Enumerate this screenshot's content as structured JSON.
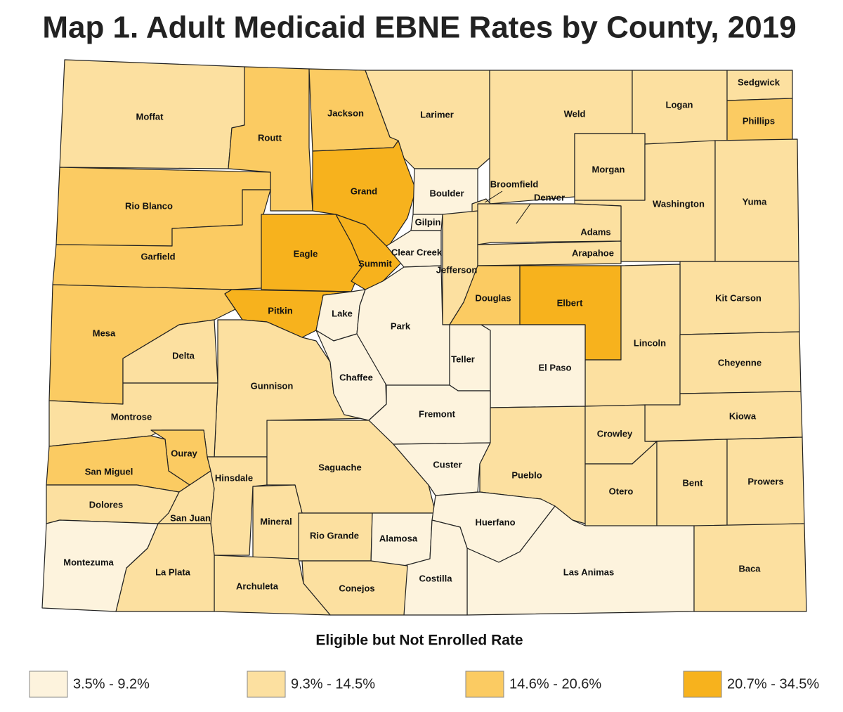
{
  "title": "Map 1. Adult Medicaid EBNE Rates by County, 2019",
  "legend": {
    "title": "Eligible but Not Enrolled Rate",
    "items": [
      {
        "label": "3.5% - 9.2%",
        "color": "#fdf3dd"
      },
      {
        "label": "9.3% - 14.5%",
        "color": "#fce0a0"
      },
      {
        "label": "14.6% - 20.6%",
        "color": "#fbcb62"
      },
      {
        "label": "20.7% - 34.5%",
        "color": "#f7b21d"
      }
    ]
  },
  "counties": [
    {
      "name": "Moffat",
      "class": 1
    },
    {
      "name": "Routt",
      "class": 2
    },
    {
      "name": "Jackson",
      "class": 2
    },
    {
      "name": "Larimer",
      "class": 1
    },
    {
      "name": "Weld",
      "class": 1
    },
    {
      "name": "Logan",
      "class": 1
    },
    {
      "name": "Sedgwick",
      "class": 1
    },
    {
      "name": "Phillips",
      "class": 2
    },
    {
      "name": "Morgan",
      "class": 1
    },
    {
      "name": "Washington",
      "class": 1
    },
    {
      "name": "Yuma",
      "class": 1
    },
    {
      "name": "Rio Blanco",
      "class": 2
    },
    {
      "name": "Garfield",
      "class": 2
    },
    {
      "name": "Grand",
      "class": 3
    },
    {
      "name": "Eagle",
      "class": 3
    },
    {
      "name": "Summit",
      "class": 3
    },
    {
      "name": "Boulder",
      "class": 0
    },
    {
      "name": "Broomfield",
      "class": 1
    },
    {
      "name": "Gilpin",
      "class": 0
    },
    {
      "name": "Clear Creek",
      "class": 0
    },
    {
      "name": "Jefferson",
      "class": 1
    },
    {
      "name": "Denver",
      "class": 1
    },
    {
      "name": "Adams",
      "class": 1
    },
    {
      "name": "Arapahoe",
      "class": 1
    },
    {
      "name": "Douglas",
      "class": 2
    },
    {
      "name": "Elbert",
      "class": 3
    },
    {
      "name": "Kit Carson",
      "class": 1
    },
    {
      "name": "Lincoln",
      "class": 1
    },
    {
      "name": "Cheyenne",
      "class": 1
    },
    {
      "name": "Kiowa",
      "class": 1
    },
    {
      "name": "Mesa",
      "class": 2
    },
    {
      "name": "Pitkin",
      "class": 3
    },
    {
      "name": "Delta",
      "class": 1
    },
    {
      "name": "Gunnison",
      "class": 1
    },
    {
      "name": "Lake",
      "class": 0
    },
    {
      "name": "Chaffee",
      "class": 0
    },
    {
      "name": "Park",
      "class": 0
    },
    {
      "name": "Teller",
      "class": 0
    },
    {
      "name": "El Paso",
      "class": 0
    },
    {
      "name": "Fremont",
      "class": 0
    },
    {
      "name": "Montrose",
      "class": 1
    },
    {
      "name": "Ouray",
      "class": 2
    },
    {
      "name": "San Miguel",
      "class": 2
    },
    {
      "name": "Dolores",
      "class": 1
    },
    {
      "name": "San Juan",
      "class": 1
    },
    {
      "name": "Hinsdale",
      "class": 1
    },
    {
      "name": "Saguache",
      "class": 1
    },
    {
      "name": "Mineral",
      "class": 1
    },
    {
      "name": "Rio Grande",
      "class": 1
    },
    {
      "name": "Alamosa",
      "class": 0
    },
    {
      "name": "Custer",
      "class": 0
    },
    {
      "name": "Pueblo",
      "class": 1
    },
    {
      "name": "Crowley",
      "class": 1
    },
    {
      "name": "Otero",
      "class": 1
    },
    {
      "name": "Bent",
      "class": 1
    },
    {
      "name": "Prowers",
      "class": 1
    },
    {
      "name": "Huerfano",
      "class": 0
    },
    {
      "name": "Las Animas",
      "class": 0
    },
    {
      "name": "Baca",
      "class": 1
    },
    {
      "name": "Costilla",
      "class": 0
    },
    {
      "name": "Conejos",
      "class": 1
    },
    {
      "name": "Archuleta",
      "class": 1
    },
    {
      "name": "La Plata",
      "class": 1
    },
    {
      "name": "Montezuma",
      "class": 0
    }
  ]
}
